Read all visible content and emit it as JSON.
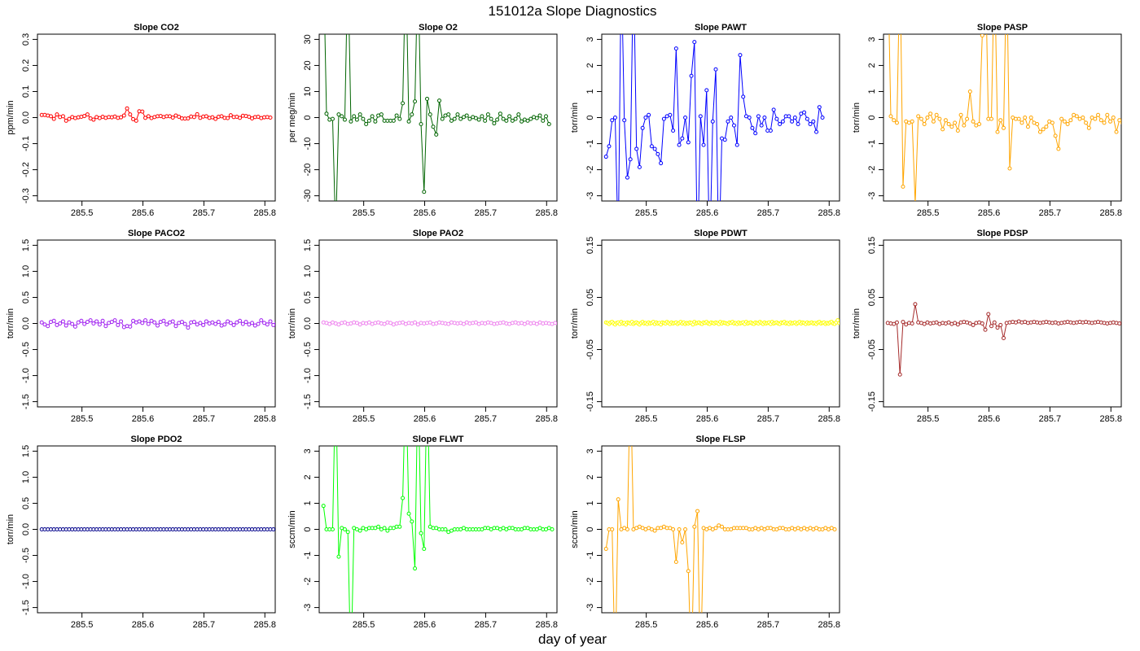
{
  "figure": {
    "title": "151012a   Slope Diagnostics",
    "xlabel": "day of year"
  },
  "chart_data": [
    {
      "type": "line",
      "title": "Slope CO2",
      "ylabel": "ppm/min",
      "color": "#ff0000",
      "xlim": [
        285.427,
        285.817
      ],
      "ylim": [
        -0.32,
        0.32
      ],
      "xticks": [
        285.5,
        285.6,
        285.7,
        285.8
      ],
      "yticks": [
        -0.3,
        -0.2,
        -0.1,
        0.0,
        0.1,
        0.2,
        0.3
      ],
      "ytick_labels": [
        "-0.3",
        "-0.2",
        "-0.1",
        "0.0",
        "0.1",
        "0.2",
        "0.3"
      ],
      "x0": 285.434,
      "dx": 0.005,
      "values": [
        0.01,
        0.01,
        0.008,
        0.005,
        -0.005,
        0.012,
        0.002,
        0.005,
        -0.012,
        -0.005,
        0.002,
        -0.002,
        0.001,
        0.003,
        0.006,
        0.012,
        -0.003,
        -0.008,
        0.002,
        -0.002,
        0.003,
        -0.001,
        0.002,
        0.001,
        0.004,
        -0.001,
        0.001,
        0.008,
        0.035,
        0.012,
        -0.006,
        -0.012,
        0.024,
        0.023,
        -0.001,
        0.005,
        -0.002,
        0.002,
        0.005,
        0.006,
        0.002,
        0.005,
        0.005,
        0.0,
        0.008,
        0.003,
        -0.003,
        -0.004,
        -0.003,
        0.004,
        0.002,
        0.013,
        -0.001,
        0.004,
        0.005,
        -0.001,
        0.001,
        -0.005,
        0.003,
        0.005,
        -0.001,
        -0.002,
        0.009,
        0.002,
        0.003,
        -0.001,
        0.007,
        0.006,
        0.003,
        -0.003,
        0.002,
        0.003,
        -0.002,
        0.001,
        0.002,
        0.0
      ]
    },
    {
      "type": "line",
      "title": "Slope O2",
      "ylabel": "per meg/min",
      "color": "#006400",
      "xlim": [
        285.427,
        285.817
      ],
      "ylim": [
        -32,
        32
      ],
      "xticks": [
        285.5,
        285.6,
        285.7,
        285.8
      ],
      "yticks": [
        -30,
        -20,
        -10,
        0,
        10,
        20,
        30
      ],
      "ytick_labels": [
        "-30",
        "-20",
        "-10",
        "0",
        "10",
        "20",
        "30"
      ],
      "x0": 285.434,
      "dx": 0.005,
      "values": [
        60,
        1.5,
        -0.8,
        -0.5,
        -45,
        1.2,
        0.5,
        -0.8,
        60,
        -1.5,
        0.5,
        -0.8,
        1.2,
        -0.5,
        -2.5,
        -1.2,
        0.5,
        -1.5,
        0.8,
        1.2,
        -1.2,
        -1.2,
        -1.2,
        -1.2,
        0.8,
        -0.5,
        5.5,
        60,
        -1.5,
        1.2,
        6.2,
        60,
        -2.5,
        -28.5,
        7.2,
        1.2,
        -3.5,
        -6.5,
        6.5,
        -0.5,
        0.8,
        1.2,
        -1.2,
        -0.5,
        1.2,
        -0.5,
        0.2,
        0.8,
        -0.5,
        0.2,
        -0.2,
        -0.8,
        0.5,
        -1.2,
        1.2,
        -0.5,
        -2.2,
        -0.8,
        1.5,
        -0.5,
        -1.2,
        0.5,
        -1.2,
        -0.5,
        1.2,
        -1.5,
        -0.8,
        -1.2,
        -0.5,
        0.2,
        -0.2,
        0.8,
        -1.2,
        0.5,
        -2.5
      ]
    },
    {
      "type": "line",
      "title": "Slope PAWT",
      "ylabel": "torr/min",
      "color": "#0000ff",
      "xlim": [
        285.427,
        285.817
      ],
      "ylim": [
        -3.2,
        3.2
      ],
      "xticks": [
        285.5,
        285.6,
        285.7,
        285.8
      ],
      "yticks": [
        -3,
        -2,
        -1,
        0,
        1,
        2,
        3
      ],
      "ytick_labels": [
        "-3",
        "-2",
        "-1",
        "0",
        "1",
        "2",
        "3"
      ],
      "x0": 285.434,
      "dx": 0.005,
      "values": [
        -1.5,
        -1.1,
        -0.1,
        0.0,
        -5.0,
        6.0,
        -0.1,
        -2.3,
        -1.6,
        6.0,
        -1.2,
        -1.9,
        -0.4,
        0.0,
        0.1,
        -1.1,
        -1.2,
        -1.4,
        -1.75,
        -0.05,
        0.05,
        0.1,
        -0.5,
        2.65,
        -1.05,
        -0.8,
        0.0,
        -0.95,
        1.6,
        2.9,
        -5.5,
        0.05,
        -1.05,
        1.05,
        -5.5,
        -0.15,
        1.85,
        -5.5,
        -0.8,
        -0.85,
        -0.15,
        0.0,
        -0.3,
        -1.05,
        2.4,
        0.8,
        0.05,
        0.0,
        -0.4,
        -0.6,
        0.05,
        -0.3,
        0.0,
        -0.5,
        -0.5,
        0.3,
        -0.05,
        -0.25,
        -0.15,
        0.05,
        0.05,
        -0.15,
        0.0,
        -0.25,
        0.15,
        0.2,
        -0.05,
        -0.25,
        -0.15,
        -0.55,
        0.4,
        0.0
      ]
    },
    {
      "type": "line",
      "title": "Slope PASP",
      "ylabel": "torr/min",
      "color": "#ffa500",
      "xlim": [
        285.427,
        285.817
      ],
      "ylim": [
        -3.2,
        3.2
      ],
      "xticks": [
        285.5,
        285.6,
        285.7,
        285.8
      ],
      "yticks": [
        -3,
        -2,
        -1,
        0,
        1,
        2,
        3
      ],
      "ytick_labels": [
        "-3",
        "-2",
        "-1",
        "0",
        "1",
        "2",
        "3"
      ],
      "x0": 285.434,
      "dx": 0.005,
      "values": [
        6.0,
        0.05,
        -0.1,
        -0.2,
        6.0,
        -2.65,
        -0.15,
        -0.2,
        -0.15,
        -3.3,
        0.05,
        -0.05,
        -0.25,
        0.0,
        0.15,
        -0.15,
        0.1,
        -0.05,
        -0.45,
        -0.1,
        -0.25,
        -0.35,
        -0.2,
        -0.5,
        0.1,
        -0.3,
        -0.05,
        1.0,
        -0.15,
        -0.3,
        -0.25,
        3.15,
        6.0,
        -0.05,
        -0.05,
        6.0,
        -0.55,
        -0.1,
        -0.4,
        6.0,
        -1.95,
        0.0,
        -0.05,
        -0.05,
        -0.2,
        0.0,
        -0.35,
        0.0,
        -0.2,
        -0.25,
        -0.55,
        -0.45,
        -0.35,
        -0.15,
        -0.2,
        -0.7,
        -1.2,
        -0.05,
        -0.15,
        -0.25,
        -0.1,
        0.1,
        0.05,
        -0.05,
        0.0,
        -0.2,
        -0.4,
        0.0,
        -0.05,
        0.1,
        -0.1,
        -0.2,
        0.1,
        -0.15,
        0.0,
        -0.55,
        -0.1,
        -0.2,
        0.75
      ]
    },
    {
      "type": "line",
      "title": "Slope PACO2",
      "ylabel": "torr/min",
      "color": "#a020f0",
      "xlim": [
        285.427,
        285.817
      ],
      "ylim": [
        -1.6,
        1.6
      ],
      "xticks": [
        285.5,
        285.6,
        285.7,
        285.8
      ],
      "yticks": [
        -1.5,
        -1.0,
        -0.5,
        0.0,
        0.5,
        1.0,
        1.5
      ],
      "ytick_labels": [
        "-1.5",
        "-1.0",
        "-0.5",
        "0.0",
        "0.5",
        "1.0",
        "1.5"
      ],
      "x0": 285.434,
      "dx": 0.005,
      "values": [
        0.02,
        -0.02,
        -0.05,
        0.03,
        0.05,
        -0.03,
        0.0,
        0.04,
        -0.04,
        0.02,
        -0.01,
        -0.06,
        0.02,
        0.05,
        -0.01,
        0.03,
        0.06,
        0.0,
        0.04,
        -0.02,
        0.05,
        -0.05,
        0.01,
        0.03,
        0.06,
        -0.03,
        0.04,
        -0.07,
        -0.05,
        -0.06,
        0.05,
        0.02,
        0.04,
        0.01,
        0.06,
        -0.01,
        0.05,
        0.02,
        -0.04,
        0.03,
        0.05,
        -0.02,
        0.02,
        0.04,
        -0.05,
        0.01,
        0.03,
        -0.01,
        -0.08,
        0.02,
        0.03,
        -0.02,
        0.01,
        -0.03,
        0.04,
        0.0,
        0.02,
        -0.01,
        0.03,
        -0.04,
        -0.02,
        0.04,
        0.01,
        -0.03,
        0.02,
        0.05,
        -0.01,
        0.03,
        -0.02,
        0.01,
        -0.04,
        -0.01,
        0.06,
        0.01,
        -0.02,
        0.04,
        -0.03,
        0.0,
        0.02,
        -0.01,
        0.0
      ]
    },
    {
      "type": "line",
      "title": "Slope PAO2",
      "ylabel": "torr/min",
      "color": "#ee82ee",
      "xlim": [
        285.427,
        285.817
      ],
      "ylim": [
        -1.6,
        1.6
      ],
      "xticks": [
        285.5,
        285.6,
        285.7,
        285.8
      ],
      "yticks": [
        -1.5,
        -1.0,
        -0.5,
        0.0,
        0.5,
        1.0,
        1.5
      ],
      "ytick_labels": [
        "-1.5",
        "-1.0",
        "-0.5",
        "0.0",
        "0.5",
        "1.0",
        "1.5"
      ],
      "x0": 285.434,
      "dx": 0.005,
      "values": [
        0.02,
        0.01,
        -0.01,
        0.02,
        0.0,
        -0.02,
        0.01,
        0.02,
        -0.01,
        0.0,
        0.02,
        0.01,
        -0.02,
        0.01,
        0.0,
        0.02,
        -0.01,
        0.01,
        0.02,
        0.0,
        -0.01,
        0.02,
        0.01,
        -0.02,
        0.0,
        0.01,
        0.02,
        -0.01,
        0.01,
        0.0,
        0.02,
        -0.02,
        0.01,
        0.0,
        0.01,
        0.02,
        -0.01,
        0.0,
        0.02,
        0.01,
        0.0,
        -0.01,
        0.02,
        0.01,
        0.0,
        0.01,
        -0.01,
        0.02,
        0.0,
        0.01,
        0.02,
        -0.01,
        0.01,
        0.0,
        0.02,
        0.01,
        -0.01,
        0.0,
        0.01,
        0.02,
        0.0,
        -0.01,
        0.01,
        0.02,
        0.0,
        0.01,
        -0.01,
        0.02,
        0.0,
        0.01,
        -0.01,
        0.02,
        0.0,
        0.01,
        0.0,
        -0.01,
        0.01,
        0.0
      ]
    },
    {
      "type": "line",
      "title": "Slope PDWT",
      "ylabel": "torr/min",
      "color": "#ffff00",
      "xlim": [
        285.427,
        285.817
      ],
      "ylim": [
        -0.16,
        0.16
      ],
      "xticks": [
        285.5,
        285.6,
        285.7,
        285.8
      ],
      "yticks": [
        -0.15,
        -0.05,
        0.05,
        0.15
      ],
      "ytick_labels": [
        "-0.15",
        "-0.05",
        "0.05",
        "0.15"
      ],
      "x0": 285.434,
      "dx": 0.0025,
      "values": [
        0.002,
        0.001,
        -0.001,
        0.002,
        0.003,
        0.0,
        -0.002,
        0.001,
        0.002,
        -0.001,
        0.003,
        0.0,
        0.001,
        -0.002,
        0.002,
        0.001,
        0.0,
        0.003,
        -0.001,
        0.001,
        0.002,
        0.0,
        -0.002,
        0.001,
        0.003,
        0.0,
        0.001,
        -0.001,
        0.002,
        0.0,
        0.001,
        0.003,
        -0.001,
        0.002,
        0.0,
        0.001,
        -0.002,
        0.002,
        0.001,
        0.0,
        0.003,
        0.001,
        -0.001,
        0.002,
        0.0,
        0.001,
        0.002,
        -0.001,
        0.001,
        0.003,
        0.0,
        0.002,
        -0.001,
        0.001,
        0.0,
        0.002,
        0.001,
        -0.002,
        0.003,
        0.0,
        0.001,
        0.002,
        0.0,
        -0.001,
        0.002,
        0.001,
        0.003,
        0.0,
        -0.001,
        0.002,
        0.001,
        0.0,
        0.002,
        0.001,
        -0.001,
        0.003,
        0.0,
        0.002,
        0.001,
        0.0,
        -0.001,
        0.002,
        0.001,
        0.003,
        0.0,
        0.001,
        -0.001,
        0.002,
        0.0,
        0.001,
        0.002,
        -0.001,
        0.003,
        0.0,
        0.001,
        0.002,
        0.0,
        -0.001,
        0.002,
        0.001,
        0.0,
        0.003,
        0.001,
        -0.001,
        0.002,
        0.0,
        0.001,
        0.002,
        -0.001,
        0.003,
        0.0,
        0.001,
        0.002,
        0.0,
        -0.001,
        0.002,
        0.001,
        0.003,
        0.0,
        0.001,
        -0.001,
        0.002,
        0.0,
        0.001,
        0.002,
        -0.001,
        0.001,
        0.003,
        0.0,
        0.002,
        0.001,
        -0.001,
        0.002,
        0.0,
        0.001,
        0.002,
        0.0,
        0.001,
        -0.001,
        0.002,
        0.003,
        0.0,
        0.001,
        0.002,
        -0.001,
        0.001,
        0.0,
        0.002,
        0.003,
        0.0,
        -0.001,
        0.002,
        0.006,
        0.001,
        0.004,
        -0.001,
        0.003,
        0.007
      ]
    },
    {
      "type": "line",
      "title": "Slope PDSP",
      "ylabel": "torr/min",
      "color": "#a52a2a",
      "xlim": [
        285.427,
        285.817
      ],
      "ylim": [
        -0.16,
        0.16
      ],
      "xticks": [
        285.5,
        285.6,
        285.7,
        285.8
      ],
      "yticks": [
        -0.15,
        -0.05,
        0.05,
        0.15
      ],
      "ytick_labels": [
        "-0.15",
        "-0.05",
        "0.05",
        "0.15"
      ],
      "x0": 285.434,
      "dx": 0.005,
      "values": [
        0.001,
        0.0,
        -0.001,
        0.002,
        -0.098,
        0.003,
        -0.002,
        0.001,
        0.0,
        0.037,
        0.002,
        0.001,
        -0.001,
        0.002,
        0.0,
        0.001,
        0.002,
        -0.001,
        0.001,
        0.0,
        0.002,
        -0.001,
        0.001,
        -0.002,
        0.002,
        0.003,
        0.002,
        0.0,
        -0.003,
        0.001,
        0.002,
        0.0,
        -0.012,
        0.018,
        -0.005,
        0.002,
        -0.008,
        -0.003,
        -0.028,
        0.001,
        0.002,
        0.003,
        0.002,
        0.004,
        0.002,
        0.003,
        0.001,
        0.002,
        0.003,
        0.002,
        0.001,
        0.002,
        0.003,
        0.002,
        0.001,
        0.002,
        0.0,
        0.001,
        0.002,
        0.003,
        0.002,
        0.001,
        0.002,
        0.003,
        0.002,
        0.003,
        0.002,
        0.001,
        0.002,
        0.003,
        0.002,
        0.001,
        0.0,
        0.001,
        0.002,
        0.001,
        0.0,
        0.001,
        0.002
      ]
    },
    {
      "type": "line",
      "title": "Slope PDO2",
      "ylabel": "torr/min",
      "color": "#00008b",
      "xlim": [
        285.427,
        285.817
      ],
      "ylim": [
        -1.6,
        1.6
      ],
      "xticks": [
        285.5,
        285.6,
        285.7,
        285.8
      ],
      "yticks": [
        -1.5,
        -1.0,
        -0.5,
        0.0,
        0.5,
        1.0,
        1.5
      ],
      "ytick_labels": [
        "-1.5",
        "-1.0",
        "-0.5",
        "0.0",
        "0.5",
        "1.0",
        "1.5"
      ],
      "x0": 285.434,
      "dx": 0.005,
      "values": [
        0.0,
        0.0,
        0.0,
        0.0,
        0.0,
        0.0,
        0.0,
        0.0,
        0.0,
        0.0,
        0.0,
        0.0,
        0.0,
        0.0,
        0.0,
        0.0,
        0.0,
        0.0,
        0.0,
        0.0,
        0.0,
        0.0,
        0.0,
        0.0,
        0.0,
        0.0,
        0.0,
        0.0,
        0.0,
        0.0,
        0.0,
        0.0,
        0.0,
        0.0,
        0.0,
        0.0,
        0.0,
        0.0,
        0.0,
        0.0,
        0.0,
        0.0,
        0.0,
        0.0,
        0.0,
        0.0,
        0.0,
        0.0,
        0.0,
        0.0,
        0.0,
        0.0,
        0.0,
        0.0,
        0.0,
        0.0,
        0.0,
        0.0,
        0.0,
        0.0,
        0.0,
        0.0,
        0.0,
        0.0,
        0.0,
        0.0,
        0.0,
        0.0,
        0.0,
        0.0,
        0.0,
        0.0,
        0.0,
        0.0,
        0.0,
        0.0,
        0.0,
        0.0
      ]
    },
    {
      "type": "line",
      "title": "Slope FLWT",
      "ylabel": "sccm/min",
      "color": "#00ff00",
      "xlim": [
        285.427,
        285.817
      ],
      "ylim": [
        -3.2,
        3.2
      ],
      "xticks": [
        285.5,
        285.6,
        285.7,
        285.8
      ],
      "yticks": [
        -3,
        -2,
        -1,
        0,
        1,
        2,
        3
      ],
      "ytick_labels": [
        "-3",
        "-2",
        "-1",
        "0",
        "1",
        "2",
        "3"
      ],
      "x0": 285.434,
      "dx": 0.005,
      "values": [
        0.9,
        0.0,
        0.0,
        0.0,
        6.0,
        -1.05,
        0.05,
        0.0,
        -0.1,
        -5.5,
        0.05,
        0.0,
        -0.05,
        0.05,
        0.0,
        0.05,
        0.05,
        0.05,
        0.1,
        0.0,
        0.05,
        -0.05,
        0.05,
        0.05,
        0.1,
        0.1,
        1.2,
        6.0,
        0.6,
        0.3,
        -1.5,
        6.0,
        -0.15,
        -0.75,
        6.0,
        0.1,
        0.05,
        0.05,
        0.0,
        0.0,
        0.0,
        -0.1,
        -0.05,
        0.0,
        0.0,
        0.0,
        0.05,
        0.0,
        0.0,
        0.0,
        0.0,
        0.0,
        0.0,
        0.05,
        0.05,
        0.0,
        0.05,
        0.05,
        0.0,
        0.05,
        0.0,
        0.05,
        0.05,
        0.0,
        0.0,
        0.0,
        0.05,
        0.05,
        0.0,
        0.0,
        0.0,
        0.05,
        0.0,
        0.0,
        0.05,
        0.0
      ]
    },
    {
      "type": "line",
      "title": "Slope FLSP",
      "ylabel": "sccm/min",
      "color": "#ffa500",
      "xlim": [
        285.427,
        285.817
      ],
      "ylim": [
        -3.2,
        3.2
      ],
      "xticks": [
        285.5,
        285.6,
        285.7,
        285.8
      ],
      "yticks": [
        -3,
        -2,
        -1,
        0,
        1,
        2,
        3
      ],
      "ytick_labels": [
        "-3",
        "-2",
        "-1",
        "0",
        "1",
        "2",
        "3"
      ],
      "x0": 285.434,
      "dx": 0.005,
      "values": [
        -0.75,
        0.0,
        0.0,
        -5.5,
        1.15,
        0.0,
        0.05,
        0.0,
        6.0,
        0.0,
        0.05,
        0.1,
        0.05,
        0.0,
        0.05,
        0.0,
        -0.05,
        0.05,
        0.05,
        0.1,
        0.05,
        0.05,
        0.0,
        -1.25,
        0.0,
        -0.5,
        0.0,
        -1.6,
        -5.5,
        0.1,
        0.7,
        -5.5,
        0.05,
        0.0,
        0.05,
        0.0,
        0.05,
        0.15,
        0.1,
        0.0,
        0.0,
        0.0,
        0.05,
        0.05,
        0.05,
        0.05,
        0.05,
        0.0,
        0.0,
        0.05,
        0.0,
        0.05,
        0.0,
        0.05,
        0.05,
        0.0,
        0.0,
        0.05,
        0.05,
        0.0,
        0.0,
        0.05,
        0.0,
        0.05,
        0.0,
        0.05,
        0.0,
        0.05,
        0.0,
        0.05,
        0.0,
        0.0,
        0.05,
        0.0,
        0.05,
        0.0
      ]
    }
  ]
}
